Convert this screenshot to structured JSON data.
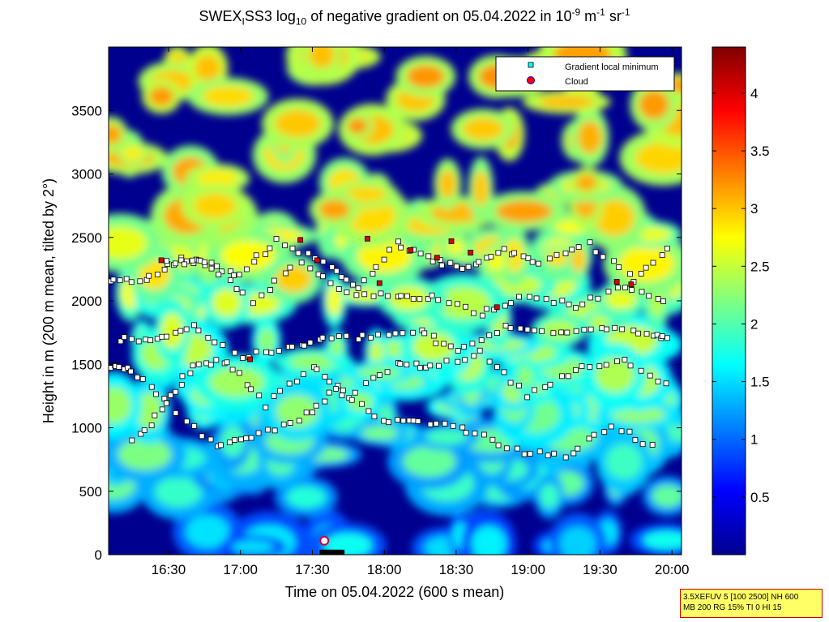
{
  "title": {
    "prefix": "SWEX",
    "sub1": "I",
    "mid": "SS3 log",
    "sub2": "10",
    "text": " of negative gradient on 05.04.2022 in 10",
    "sup1": "-9",
    "unit1": " m",
    "sup2": "-1",
    "unit2": " sr",
    "sup3": "-1"
  },
  "info_box": {
    "line1": "3.5XEFUV 5 [100 2500] NH 600",
    "line2": "MB 200 RG 15% TI 0 HI 15"
  },
  "chart_data": {
    "type": "heatmap",
    "xlabel": "Time on 05.04.2022 (600 s mean)",
    "ylabel": "Height in m (200 m mean, tilted by 2°)",
    "x_ticks": [
      "16:30",
      "17:00",
      "17:30",
      "18:00",
      "18:30",
      "19:00",
      "19:30",
      "20:00"
    ],
    "x_tick_minutes": [
      990,
      1020,
      1050,
      1080,
      1110,
      1140,
      1170,
      1200
    ],
    "xlim_minutes": [
      965,
      1204
    ],
    "y_ticks": [
      "0",
      "500",
      "1000",
      "1500",
      "2000",
      "2500",
      "3000",
      "3500"
    ],
    "y_tick_values": [
      0,
      500,
      1000,
      1500,
      2000,
      2500,
      3000,
      3500
    ],
    "ylim": [
      0,
      4000
    ],
    "colorbar": {
      "ticks": [
        "0.5",
        "1",
        "1.5",
        "2",
        "2.5",
        "3",
        "3.5",
        "4"
      ],
      "tick_values": [
        0.5,
        1,
        1.5,
        2,
        2.5,
        3,
        3.5,
        4
      ],
      "range": [
        0,
        4.4
      ],
      "colormap": "jet"
    },
    "legend": {
      "placement": "top-right",
      "entries": [
        {
          "label": "Gradient local minimum",
          "marker": "square",
          "color": "#00ffff"
        },
        {
          "label": "Cloud",
          "marker": "circle",
          "color": "#ff0000"
        }
      ]
    },
    "gradient_minima_layers": [
      {
        "x": [
          965,
          975,
          990,
          1000,
          1015,
          1030,
          1050,
          1065,
          1085,
          1100,
          1120,
          1140,
          1160,
          1180,
          1200
        ],
        "y": [
          1480,
          1460,
          1190,
          1500,
          1530,
          1180,
          1480,
          1250,
          1500,
          1480,
          1590,
          1260,
          1460,
          1520,
          1300
        ]
      },
      {
        "x": [
          965,
          980,
          995,
          1005,
          1020,
          1035,
          1055,
          1070,
          1085,
          1100,
          1115,
          1130,
          1145,
          1165,
          1185,
          1200
        ],
        "y": [
          2170,
          2160,
          2330,
          2300,
          2200,
          2480,
          2300,
          2100,
          2450,
          2320,
          2250,
          2400,
          2300,
          2450,
          2150,
          2450
        ]
      },
      {
        "x": [
          970,
          985,
          1000,
          1020,
          1040,
          1055,
          1075,
          1095,
          1110,
          1130,
          1150,
          1170,
          1190,
          1200
        ],
        "y": [
          1700,
          1700,
          1800,
          1560,
          1620,
          1700,
          1720,
          1760,
          1600,
          1790,
          1750,
          1800,
          1750,
          1700
        ]
      },
      {
        "x": [
          975,
          990,
          1010,
          1025,
          1045,
          1060,
          1080,
          1095,
          1115,
          1135,
          1155,
          1175,
          1195
        ],
        "y": [
          890,
          1180,
          840,
          930,
          1060,
          1300,
          1040,
          1050,
          980,
          820,
          770,
          1020,
          820
        ]
      },
      {
        "x": [
          990,
          1005,
          1025,
          1045,
          1065,
          1085,
          1100,
          1120,
          1140,
          1160,
          1180,
          1200
        ],
        "y": [
          2300,
          2300,
          2000,
          2300,
          2050,
          2040,
          2030,
          1900,
          2050,
          1950,
          2120,
          1950
        ]
      }
    ],
    "cloud_points": [
      {
        "x": 987,
        "y": 2320
      },
      {
        "x": 1024,
        "y": 1540
      },
      {
        "x": 1045,
        "y": 2480
      },
      {
        "x": 1052,
        "y": 2320
      },
      {
        "x": 1073,
        "y": 2490
      },
      {
        "x": 1078,
        "y": 2140
      },
      {
        "x": 1091,
        "y": 2400
      },
      {
        "x": 1102,
        "y": 2340
      },
      {
        "x": 1108,
        "y": 2470
      },
      {
        "x": 1116,
        "y": 2380
      },
      {
        "x": 1127,
        "y": 1950
      },
      {
        "x": 1177,
        "y": 2150
      },
      {
        "x": 1183,
        "y": 2130
      },
      {
        "x": 1055,
        "y": 110
      }
    ]
  }
}
